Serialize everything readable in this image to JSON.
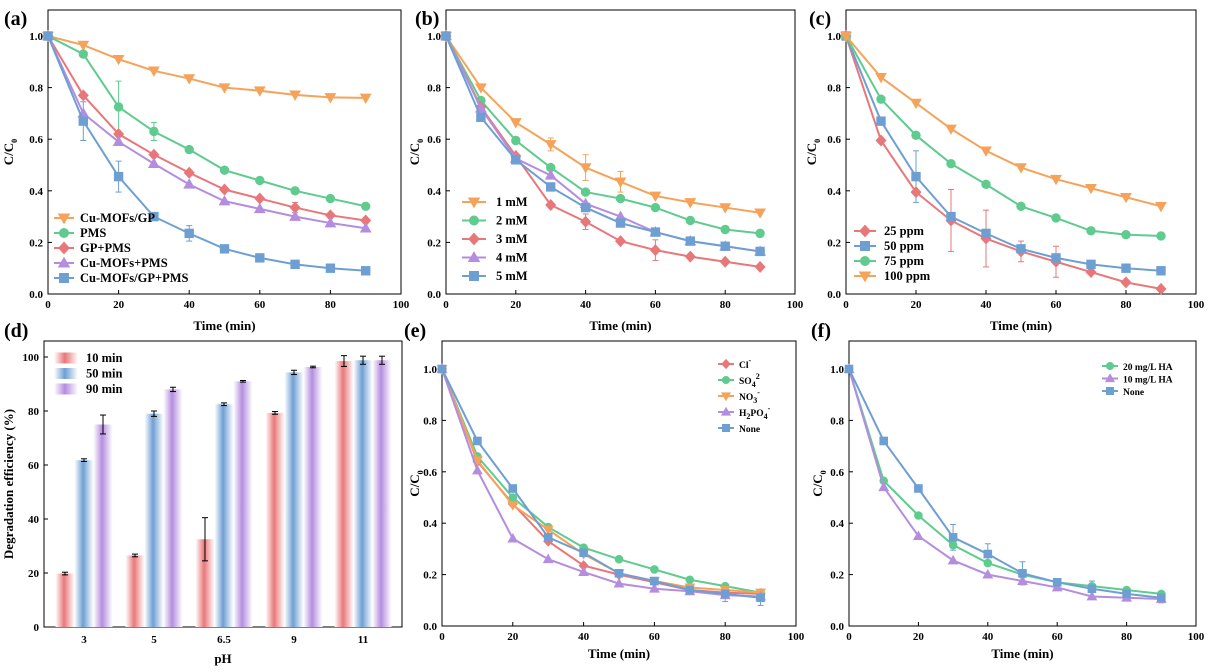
{
  "colors": {
    "orange": "#f5a35a",
    "green": "#5fcb8f",
    "red": "#e8777a",
    "purple": "#b48ddf",
    "blue": "#6e9fd3",
    "axis": "#000000"
  },
  "chart_data": [
    {
      "panel": "(a)",
      "type": "line",
      "xlabel": "Time (min)",
      "ylabel": "C/C",
      "ylabel_sub": "0",
      "xlim": [
        0,
        100
      ],
      "ylim": [
        0,
        1.0
      ],
      "xticks": [
        "0",
        "20",
        "40",
        "60",
        "80",
        "100"
      ],
      "yticks": [
        "0.0",
        "0.2",
        "0.4",
        "0.6",
        "0.8",
        "1.0"
      ],
      "x": [
        0,
        10,
        20,
        30,
        40,
        50,
        60,
        70,
        80,
        90
      ],
      "legend_position": "bottom-left",
      "series": [
        {
          "name": "Cu-MOFs/GP",
          "color": "orange",
          "marker": "triangle-down",
          "values": [
            1.0,
            0.965,
            0.91,
            0.865,
            0.835,
            0.8,
            0.788,
            0.772,
            0.762,
            0.76
          ]
        },
        {
          "name": "PMS",
          "color": "green",
          "marker": "circle",
          "values": [
            1.0,
            0.93,
            0.725,
            0.63,
            0.56,
            0.48,
            0.44,
            0.4,
            0.37,
            0.34
          ]
        },
        {
          "name": "GP+PMS",
          "color": "red",
          "marker": "diamond",
          "values": [
            1.0,
            0.77,
            0.62,
            0.54,
            0.47,
            0.405,
            0.37,
            0.335,
            0.305,
            0.285
          ]
        },
        {
          "name": "Cu-MOFs+PMS",
          "color": "purple",
          "marker": "triangle-up",
          "values": [
            1.0,
            0.7,
            0.59,
            0.505,
            0.425,
            0.36,
            0.33,
            0.3,
            0.275,
            0.255
          ]
        },
        {
          "name": "Cu-MOFs/GP+PMS",
          "color": "blue",
          "marker": "square",
          "values": [
            1.0,
            0.67,
            0.455,
            0.3,
            0.235,
            0.175,
            0.14,
            0.115,
            0.1,
            0.09
          ]
        }
      ]
    },
    {
      "panel": "(b)",
      "type": "line",
      "xlabel": "Time (min)",
      "ylabel": "C/C",
      "ylabel_sub": "0",
      "xlim": [
        0,
        100
      ],
      "ylim": [
        0,
        1.0
      ],
      "xticks": [
        "0",
        "20",
        "40",
        "60",
        "80",
        "100"
      ],
      "yticks": [
        "0.0",
        "0.2",
        "0.4",
        "0.6",
        "0.8",
        "1.0"
      ],
      "x": [
        0,
        10,
        20,
        30,
        40,
        50,
        60,
        70,
        80,
        90
      ],
      "legend_position": "bottom-left",
      "series": [
        {
          "name": "1 mM",
          "color": "orange",
          "marker": "triangle-down",
          "values": [
            1.0,
            0.8,
            0.665,
            0.58,
            0.49,
            0.435,
            0.38,
            0.355,
            0.335,
            0.315
          ]
        },
        {
          "name": "2 mM",
          "color": "green",
          "marker": "circle",
          "values": [
            1.0,
            0.75,
            0.595,
            0.49,
            0.395,
            0.37,
            0.335,
            0.285,
            0.25,
            0.235
          ]
        },
        {
          "name": "3 mM",
          "color": "red",
          "marker": "diamond",
          "values": [
            1.0,
            0.725,
            0.535,
            0.345,
            0.28,
            0.205,
            0.17,
            0.145,
            0.125,
            0.105
          ]
        },
        {
          "name": "4 mM",
          "color": "purple",
          "marker": "triangle-up",
          "values": [
            1.0,
            0.72,
            0.525,
            0.46,
            0.35,
            0.3,
            0.24,
            0.205,
            0.185,
            0.165
          ]
        },
        {
          "name": "5 mM",
          "color": "blue",
          "marker": "square",
          "values": [
            1.0,
            0.685,
            0.52,
            0.415,
            0.335,
            0.275,
            0.24,
            0.205,
            0.185,
            0.165
          ]
        }
      ]
    },
    {
      "panel": "(c)",
      "type": "line",
      "xlabel": "Time (min)",
      "ylabel": "C/C",
      "ylabel_sub": "0",
      "xlim": [
        0,
        100
      ],
      "ylim": [
        0,
        1.0
      ],
      "xticks": [
        "0",
        "20",
        "40",
        "60",
        "80",
        "100"
      ],
      "yticks": [
        "0.0",
        "0.2",
        "0.4",
        "0.6",
        "0.8",
        "1.0"
      ],
      "x": [
        0,
        10,
        20,
        30,
        40,
        50,
        60,
        70,
        80,
        90
      ],
      "legend_position": "bottom-left",
      "series": [
        {
          "name": "25 ppm",
          "color": "red",
          "marker": "diamond",
          "values": [
            1.0,
            0.595,
            0.395,
            0.285,
            0.215,
            0.165,
            0.125,
            0.085,
            0.045,
            0.02
          ]
        },
        {
          "name": "50 ppm",
          "color": "blue",
          "marker": "square",
          "values": [
            1.0,
            0.67,
            0.455,
            0.3,
            0.235,
            0.175,
            0.14,
            0.115,
            0.1,
            0.09
          ]
        },
        {
          "name": "75 ppm",
          "color": "green",
          "marker": "circle",
          "values": [
            1.0,
            0.755,
            0.615,
            0.505,
            0.425,
            0.34,
            0.295,
            0.245,
            0.23,
            0.225
          ]
        },
        {
          "name": "100 ppm",
          "color": "orange",
          "marker": "triangle-down",
          "values": [
            1.0,
            0.84,
            0.74,
            0.64,
            0.555,
            0.49,
            0.445,
            0.41,
            0.375,
            0.34
          ]
        }
      ]
    },
    {
      "panel": "(d)",
      "type": "bar",
      "xlabel": "pH",
      "ylabel": "Degradation efficiency (%)",
      "ylim": [
        0,
        105
      ],
      "yticks": [
        "0",
        "20",
        "40",
        "60",
        "80",
        "100"
      ],
      "categories": [
        "3",
        "5",
        "6.5",
        "9",
        "11"
      ],
      "legend_position": "top-left",
      "series": [
        {
          "name": "10 min",
          "color": "red",
          "values": [
            19.8,
            26.5,
            32.5,
            79.3,
            98.5
          ],
          "errors": [
            0.5,
            0.5,
            8.0,
            0.5,
            2.0
          ]
        },
        {
          "name": "50 min",
          "color": "blue",
          "values": [
            61.8,
            79.0,
            82.5,
            94.3,
            98.8
          ],
          "errors": [
            0.5,
            1.0,
            0.5,
            0.8,
            1.5
          ]
        },
        {
          "name": "90 min",
          "color": "purple",
          "values": [
            75.0,
            88.0,
            91.0,
            96.3,
            98.8
          ],
          "errors": [
            3.5,
            0.8,
            0.3,
            0.3,
            1.5
          ]
        }
      ]
    },
    {
      "panel": "(e)",
      "type": "line",
      "xlabel": "Time (min)",
      "ylabel": "C/C",
      "ylabel_sub": "0",
      "xlim": [
        0,
        100
      ],
      "ylim": [
        0,
        1.0
      ],
      "xticks": [
        "0",
        "20",
        "40",
        "60",
        "80",
        "100"
      ],
      "yticks": [
        "0.0",
        "0.2",
        "0.4",
        "0.6",
        "0.8",
        "1.0"
      ],
      "x": [
        0,
        10,
        20,
        30,
        40,
        50,
        60,
        70,
        80,
        90
      ],
      "legend_position": "top-right",
      "series": [
        {
          "name": "Cl",
          "sup": "-",
          "color": "red",
          "marker": "diamond",
          "values": [
            1.0,
            0.64,
            0.475,
            0.33,
            0.235,
            0.2,
            0.17,
            0.14,
            0.13,
            0.125
          ]
        },
        {
          "name": "SO",
          "sub": "4",
          "sup": "2",
          "color": "green",
          "marker": "circle",
          "values": [
            1.0,
            0.66,
            0.5,
            0.385,
            0.305,
            0.26,
            0.22,
            0.18,
            0.155,
            0.13
          ]
        },
        {
          "name": "NO",
          "sub": "3",
          "sup": "-",
          "color": "orange",
          "marker": "triangle-down",
          "values": [
            1.0,
            0.645,
            0.47,
            0.375,
            0.28,
            0.205,
            0.175,
            0.15,
            0.14,
            0.13
          ]
        },
        {
          "name": "H",
          "sub": "2",
          "mid": "PO",
          "sub2": "4",
          "sup": "-",
          "color": "purple",
          "marker": "triangle-up",
          "values": [
            1.0,
            0.605,
            0.34,
            0.26,
            0.21,
            0.165,
            0.145,
            0.135,
            0.12,
            0.115
          ]
        },
        {
          "name": "None",
          "color": "blue",
          "marker": "square",
          "values": [
            1.0,
            0.72,
            0.535,
            0.345,
            0.285,
            0.205,
            0.175,
            0.14,
            0.125,
            0.11
          ]
        }
      ]
    },
    {
      "panel": "(f)",
      "type": "line",
      "xlabel": "Time (min)",
      "ylabel": "C/C",
      "ylabel_sub": "0",
      "xlim": [
        0,
        100
      ],
      "ylim": [
        0,
        1.0
      ],
      "xticks": [
        "0",
        "20",
        "40",
        "60",
        "80",
        "100"
      ],
      "yticks": [
        "0.0",
        "0.2",
        "0.4",
        "0.6",
        "0.8",
        "1.0"
      ],
      "x": [
        0,
        10,
        20,
        30,
        40,
        50,
        60,
        70,
        80,
        90
      ],
      "legend_position": "top-right",
      "series": [
        {
          "name": "20 mg/L HA",
          "color": "green",
          "marker": "circle",
          "values": [
            1.0,
            0.565,
            0.43,
            0.315,
            0.245,
            0.2,
            0.17,
            0.155,
            0.14,
            0.125
          ]
        },
        {
          "name": "10 mg/L HA",
          "color": "purple",
          "marker": "triangle-up",
          "values": [
            1.0,
            0.54,
            0.35,
            0.255,
            0.2,
            0.175,
            0.15,
            0.115,
            0.11,
            0.105
          ]
        },
        {
          "name": "None",
          "color": "blue",
          "marker": "square",
          "values": [
            1.0,
            0.72,
            0.535,
            0.345,
            0.28,
            0.205,
            0.17,
            0.145,
            0.125,
            0.11
          ]
        }
      ]
    }
  ]
}
